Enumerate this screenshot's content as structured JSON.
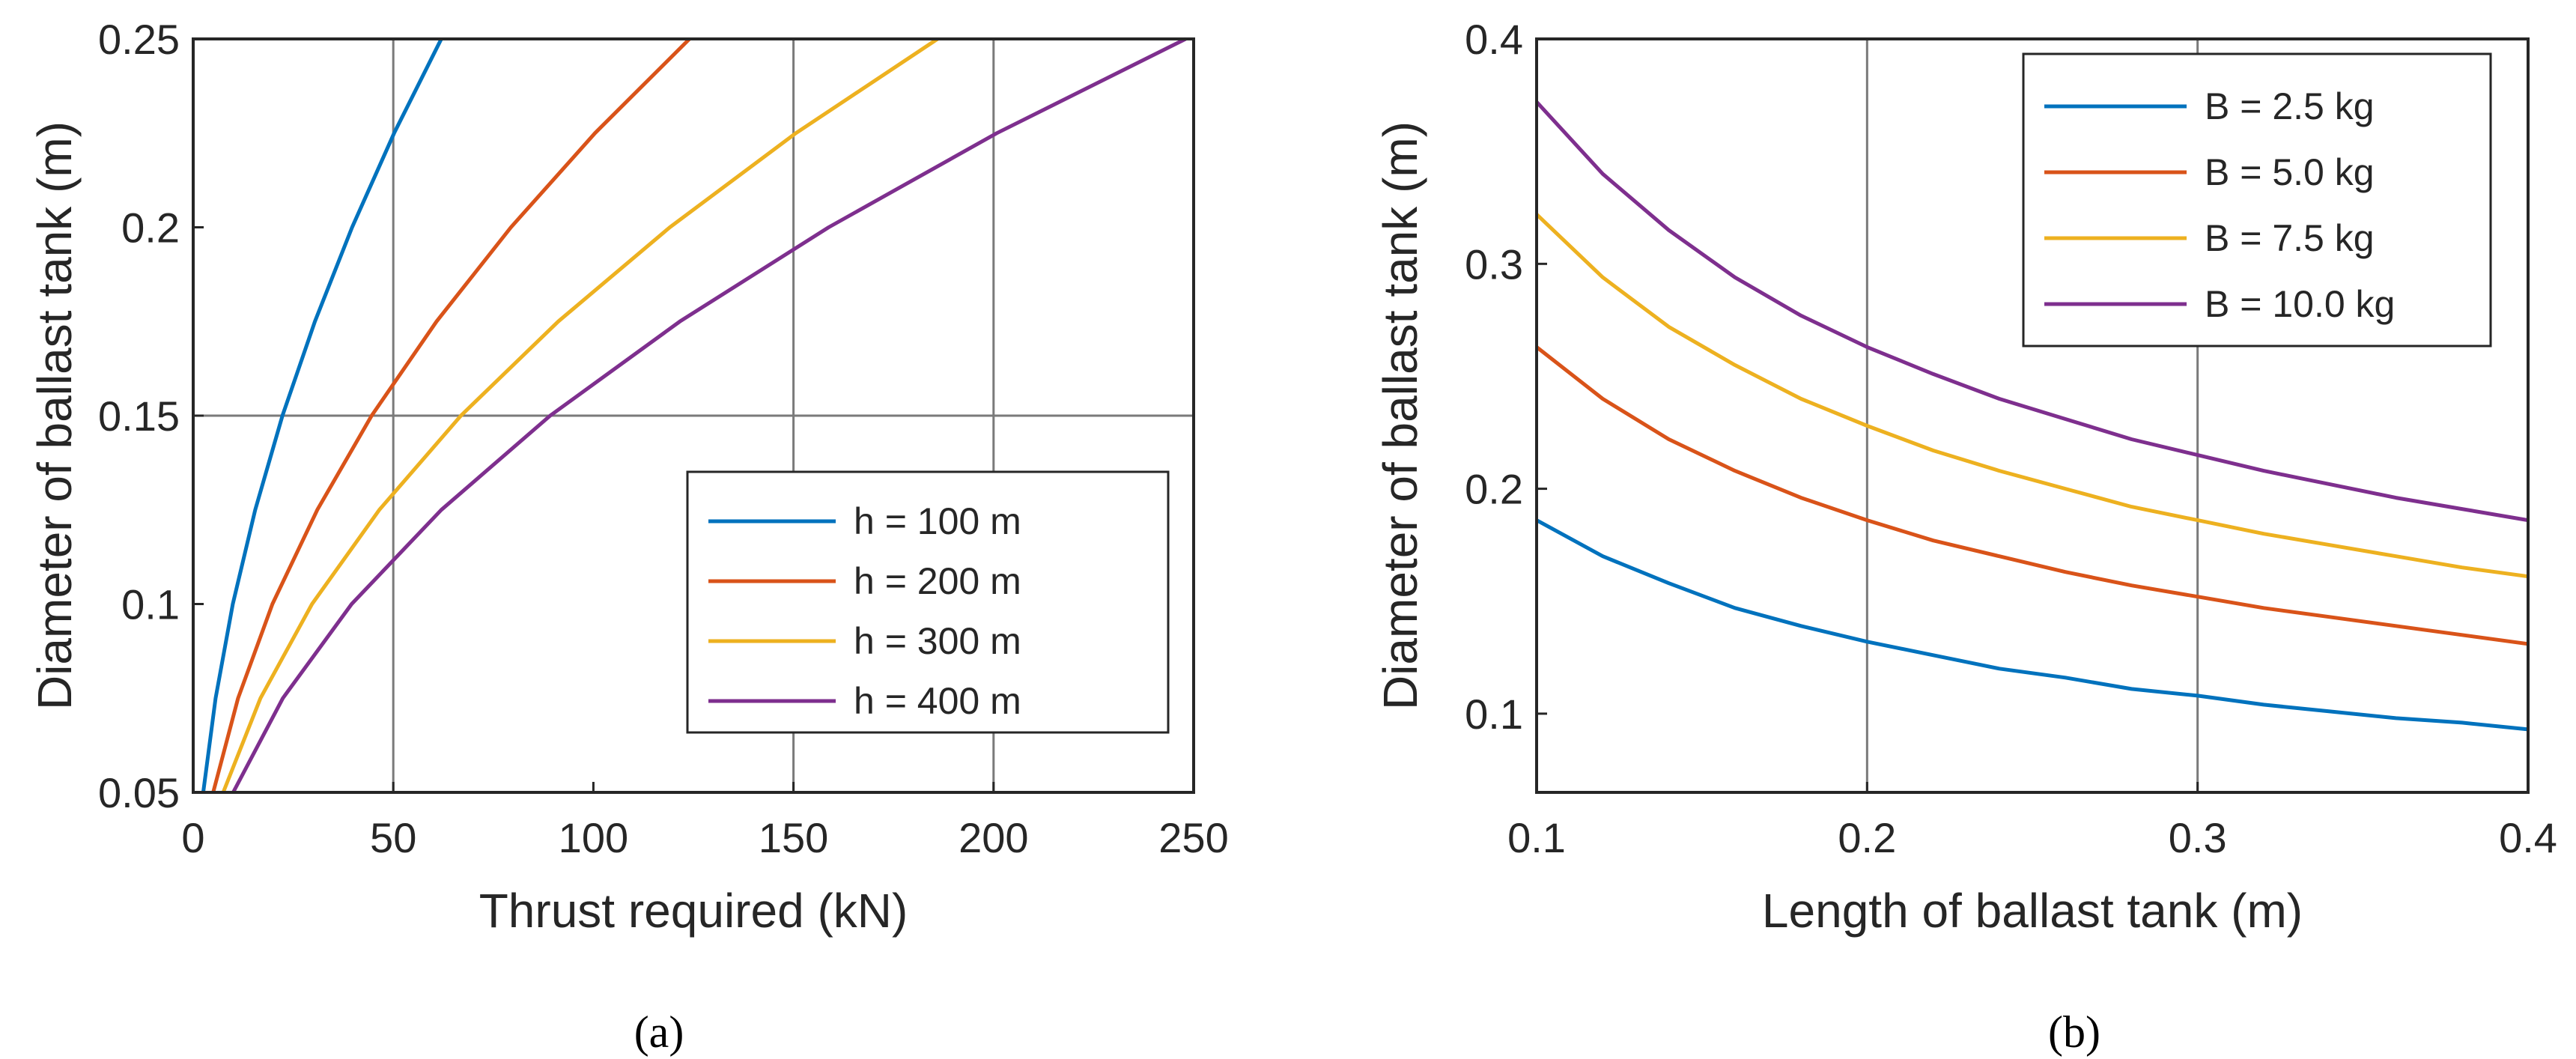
{
  "chart_data": [
    {
      "type": "line",
      "caption": "(a)",
      "xlabel": "Thrust required (kN)",
      "ylabel": "Diameter of ballast tank (m)",
      "xlim": [
        0,
        250
      ],
      "ylim": [
        0.05,
        0.25
      ],
      "xticks": [
        "0",
        "50",
        "100",
        "150",
        "200",
        "250"
      ],
      "yticks": [
        "0.05",
        "0.1",
        "0.15",
        "0.2",
        "0.25"
      ],
      "grid_x": [
        50,
        150,
        200
      ],
      "grid_y": [
        0.15
      ],
      "legend_position": "bottom-right",
      "series": [
        {
          "name": "h = 100 m",
          "color": "#0072BD",
          "x": [
            2.5,
            5.6,
            9.9,
            15.5,
            22.3,
            30.4,
            39.7,
            50.2,
            62.0
          ],
          "y": [
            0.05,
            0.075,
            0.1,
            0.125,
            0.15,
            0.175,
            0.2,
            0.225,
            0.25
          ]
        },
        {
          "name": "h = 200 m",
          "color": "#D95319",
          "x": [
            5.0,
            11.2,
            19.8,
            31.0,
            44.6,
            60.8,
            79.4,
            100.4,
            124.0
          ],
          "y": [
            0.05,
            0.075,
            0.1,
            0.125,
            0.15,
            0.175,
            0.2,
            0.225,
            0.25
          ]
        },
        {
          "name": "h = 300 m",
          "color": "#EDB120",
          "x": [
            7.5,
            16.8,
            29.7,
            46.5,
            66.9,
            91.2,
            119.1,
            150.6,
            186.0
          ],
          "y": [
            0.05,
            0.075,
            0.1,
            0.125,
            0.15,
            0.175,
            0.2,
            0.225,
            0.25
          ]
        },
        {
          "name": "h = 400 m",
          "color": "#7E2F8E",
          "x": [
            10.0,
            22.4,
            39.6,
            62.0,
            89.2,
            121.6,
            158.8,
            200.8,
            248.0
          ],
          "y": [
            0.05,
            0.075,
            0.1,
            0.125,
            0.15,
            0.175,
            0.2,
            0.225,
            0.25
          ]
        }
      ]
    },
    {
      "type": "line",
      "caption": "(b)",
      "xlabel": "Length of ballast tank (m)",
      "ylabel": "Diameter of ballast tank (m)",
      "xlim": [
        0.1,
        0.4
      ],
      "ylim": [
        0.065,
        0.4
      ],
      "xticks": [
        "0.1",
        "0.2",
        "0.3",
        "0.4"
      ],
      "yticks": [
        "0.1",
        "0.2",
        "0.3",
        "0.4"
      ],
      "grid_x": [
        0.2,
        0.3
      ],
      "grid_y": [],
      "legend_position": "top-right",
      "series": [
        {
          "name": "B = 2.5 kg",
          "color": "#0072BD",
          "x": [
            0.1,
            0.12,
            0.14,
            0.16,
            0.18,
            0.2,
            0.22,
            0.24,
            0.26,
            0.28,
            0.3,
            0.32,
            0.34,
            0.36,
            0.38,
            0.4
          ],
          "y": [
            0.186,
            0.17,
            0.158,
            0.147,
            0.139,
            0.132,
            0.126,
            0.12,
            0.116,
            0.111,
            0.108,
            0.104,
            0.101,
            0.098,
            0.096,
            0.093
          ]
        },
        {
          "name": "B = 5.0 kg",
          "color": "#D95319",
          "x": [
            0.1,
            0.12,
            0.14,
            0.16,
            0.18,
            0.2,
            0.22,
            0.24,
            0.26,
            0.28,
            0.3,
            0.32,
            0.34,
            0.36,
            0.38,
            0.4
          ],
          "y": [
            0.263,
            0.24,
            0.222,
            0.208,
            0.196,
            0.186,
            0.177,
            0.17,
            0.163,
            0.157,
            0.152,
            0.147,
            0.143,
            0.139,
            0.135,
            0.131
          ]
        },
        {
          "name": "B = 7.5 kg",
          "color": "#EDB120",
          "x": [
            0.1,
            0.12,
            0.14,
            0.16,
            0.18,
            0.2,
            0.22,
            0.24,
            0.26,
            0.28,
            0.3,
            0.32,
            0.34,
            0.36,
            0.38,
            0.4
          ],
          "y": [
            0.322,
            0.294,
            0.272,
            0.255,
            0.24,
            0.228,
            0.217,
            0.208,
            0.2,
            0.192,
            0.186,
            0.18,
            0.175,
            0.17,
            0.165,
            0.161
          ]
        },
        {
          "name": "B = 10.0 kg",
          "color": "#7E2F8E",
          "x": [
            0.1,
            0.12,
            0.14,
            0.16,
            0.18,
            0.2,
            0.22,
            0.24,
            0.26,
            0.28,
            0.3,
            0.32,
            0.34,
            0.36,
            0.38,
            0.4
          ],
          "y": [
            0.372,
            0.34,
            0.315,
            0.294,
            0.277,
            0.263,
            0.251,
            0.24,
            0.231,
            0.222,
            0.215,
            0.208,
            0.202,
            0.196,
            0.191,
            0.186
          ]
        }
      ]
    }
  ]
}
